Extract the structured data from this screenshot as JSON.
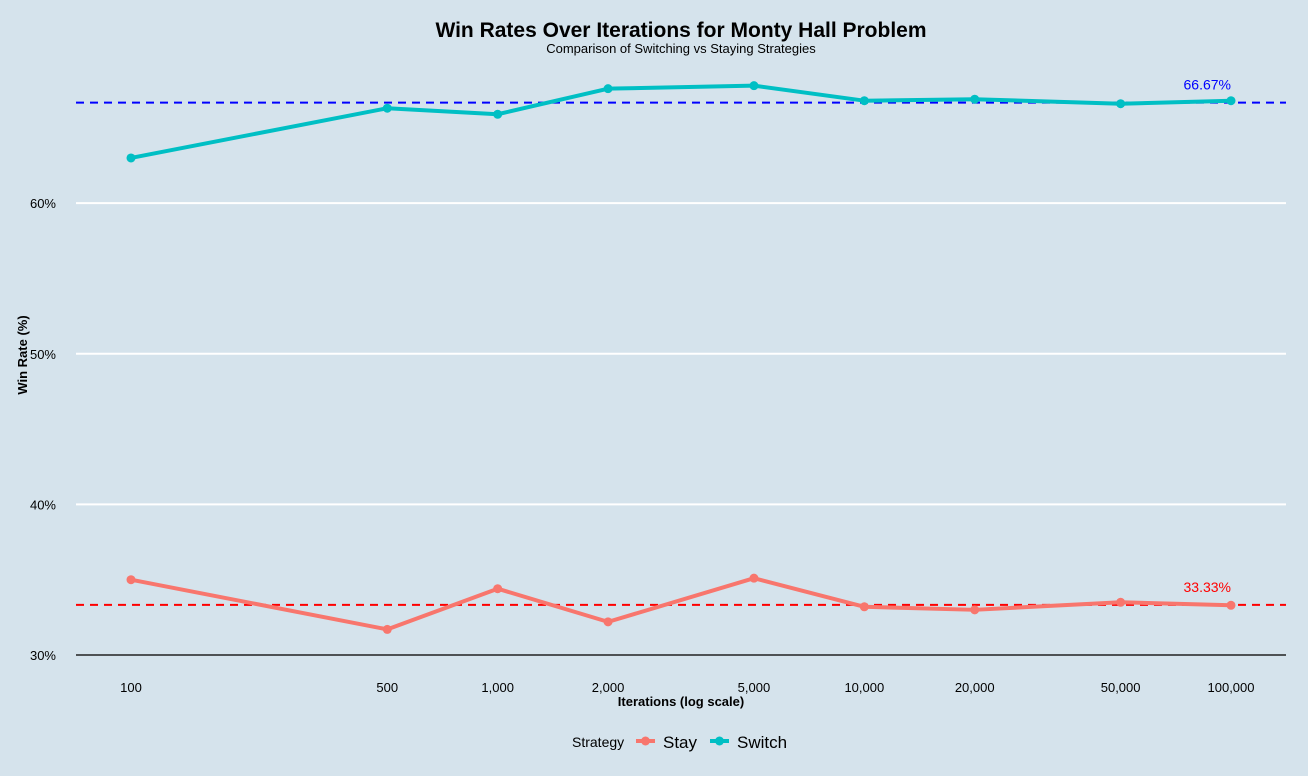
{
  "chart_data": {
    "type": "line",
    "title": "Win Rates Over Iterations for Monty Hall Problem",
    "subtitle": "Comparison of Switching vs Staying Strategies",
    "xlabel": "Iterations (log scale)",
    "ylabel": "Win Rate (%)",
    "x_scale": "log",
    "x": [
      100,
      500,
      1000,
      2000,
      5000,
      10000,
      20000,
      50000,
      100000
    ],
    "x_tick_labels": [
      "100",
      "500",
      "1,000",
      "2,000",
      "5,000",
      "10,000",
      "20,000",
      "50,000",
      "100,000"
    ],
    "ylim": [
      30,
      70
    ],
    "y_ticks": [
      30,
      40,
      50,
      60
    ],
    "y_tick_labels": [
      "30%",
      "40%",
      "50%",
      "60%"
    ],
    "series": [
      {
        "name": "Stay",
        "color": "#f8766d",
        "values": [
          35.0,
          31.7,
          34.4,
          32.2,
          35.1,
          33.2,
          33.0,
          33.5,
          33.3
        ]
      },
      {
        "name": "Switch",
        "color": "#00bfc4",
        "values": [
          63.0,
          66.3,
          65.9,
          67.6,
          67.8,
          66.8,
          66.9,
          66.6,
          66.8
        ]
      }
    ],
    "reference_lines": [
      {
        "value": 66.67,
        "label": "66.67%",
        "color": "#0000ff"
      },
      {
        "value": 33.33,
        "label": "33.33%",
        "color": "#ff0000"
      }
    ],
    "legend": {
      "title": "Strategy",
      "position": "bottom"
    },
    "grid": "horizontal-major"
  }
}
